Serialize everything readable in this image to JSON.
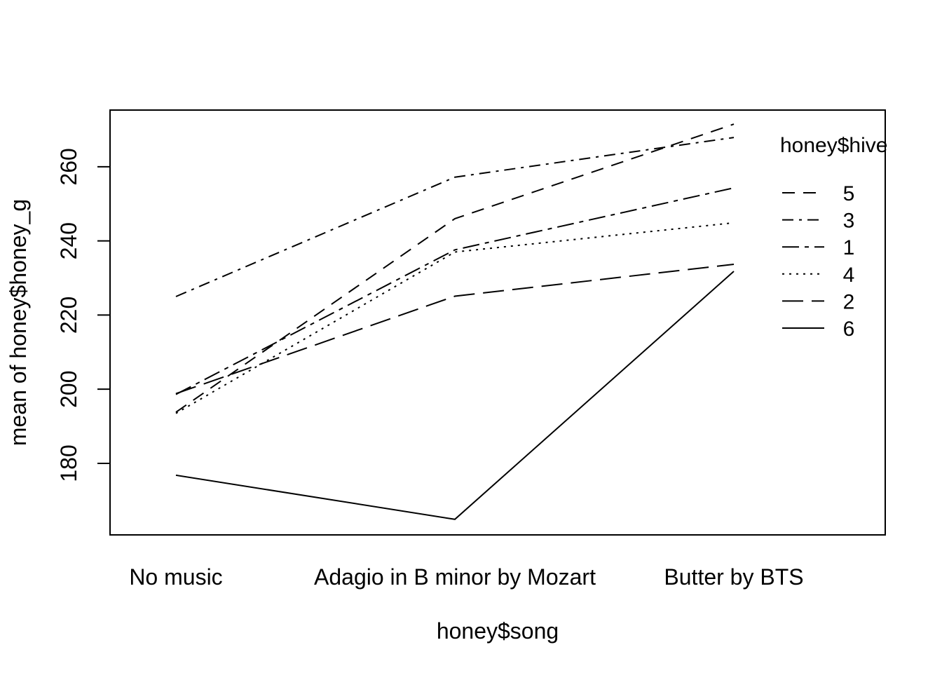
{
  "chart_data": {
    "type": "line",
    "title": "",
    "xlabel": "honey$song",
    "ylabel": "mean of  honey$honey_g",
    "categories": [
      "No music",
      "Adagio in B minor by Mozart",
      "Butter by BTS"
    ],
    "ylim": [
      160.7,
      275.3
    ],
    "yticks": [
      180,
      200,
      220,
      240,
      260
    ],
    "grid": false,
    "legend": {
      "title": "honey$hive",
      "placement": "top-right",
      "frame": false
    },
    "series": [
      {
        "name": "5",
        "values": [
          193.8,
          246.0,
          271.5
        ],
        "dash": "18 12"
      },
      {
        "name": "3",
        "values": [
          225.0,
          257.2,
          267.9
        ],
        "dash": "16 8 4 8"
      },
      {
        "name": "1",
        "values": [
          198.6,
          237.6,
          254.3
        ],
        "dash": "24 8 6 8"
      },
      {
        "name": "4",
        "values": [
          193.5,
          237.0,
          244.9
        ],
        "dash": "3 7"
      },
      {
        "name": "2",
        "values": [
          198.8,
          225.1,
          233.7
        ],
        "dash": "30 12"
      },
      {
        "name": "6",
        "values": [
          176.8,
          164.9,
          231.8
        ],
        "dash": ""
      }
    ]
  }
}
